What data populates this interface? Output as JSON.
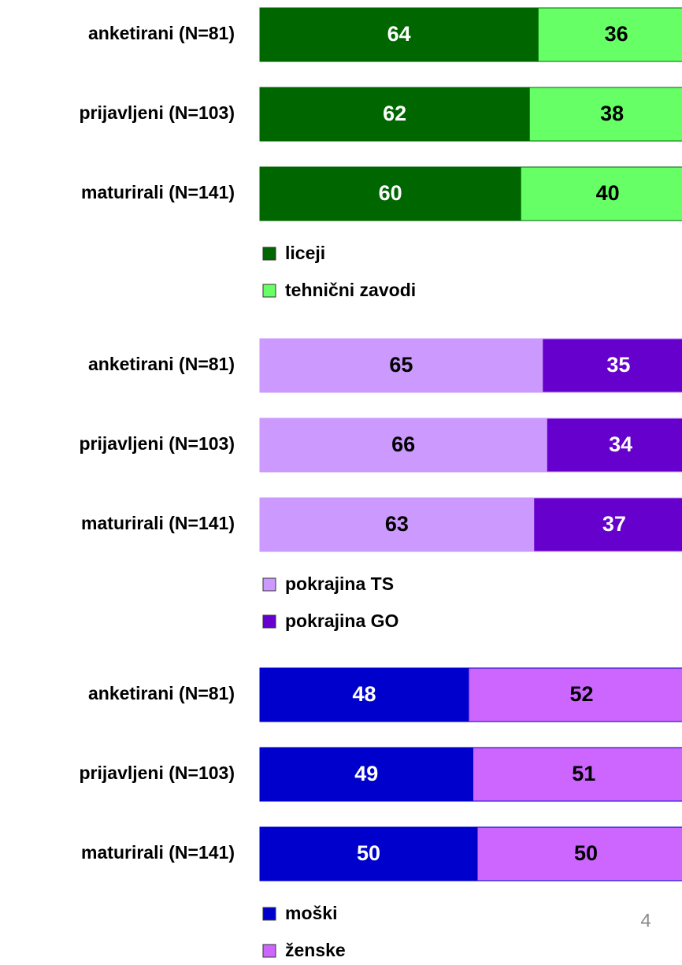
{
  "chart_data": [
    {
      "type": "stacked-bar",
      "categories": [
        "anketirani (N=81)",
        "prijavljeni (N=103)",
        "maturirali (N=141)"
      ],
      "series": [
        {
          "name": "liceji",
          "color": "#006600",
          "values": [
            64,
            62,
            60
          ]
        },
        {
          "name": "tehnični zavodi",
          "color": "#66ff66",
          "values": [
            36,
            38,
            40
          ]
        }
      ]
    },
    {
      "type": "stacked-bar",
      "categories": [
        "anketirani (N=81)",
        "prijavljeni (N=103)",
        "maturirali (N=141)"
      ],
      "series": [
        {
          "name": "pokrajina TS",
          "color": "#cc99ff",
          "values": [
            65,
            66,
            63
          ]
        },
        {
          "name": "pokrajina GO",
          "color": "#6600cc",
          "values": [
            35,
            34,
            37
          ]
        }
      ]
    },
    {
      "type": "stacked-bar",
      "categories": [
        "anketirani (N=81)",
        "prijavljeni (N=103)",
        "maturirali (N=141)"
      ],
      "series": [
        {
          "name": "moški",
          "color": "#0000cc",
          "values": [
            48,
            49,
            50
          ]
        },
        {
          "name": "ženske",
          "color": "#cc66ff",
          "values": [
            52,
            51,
            50
          ]
        }
      ]
    }
  ],
  "page_number": "4"
}
